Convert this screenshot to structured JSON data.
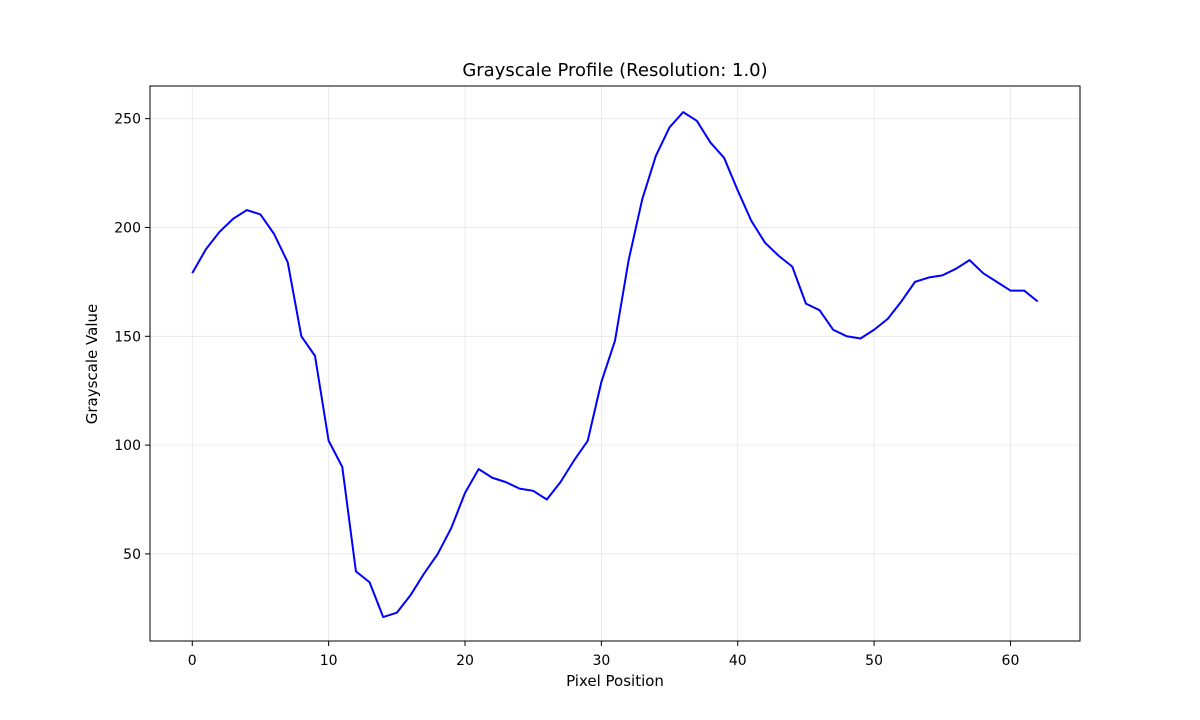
{
  "chart_data": {
    "type": "line",
    "title": "Grayscale Profile (Resolution: 1.0)",
    "xlabel": "Pixel Position",
    "ylabel": "Grayscale Value",
    "xlim": [
      -3.1,
      65.1
    ],
    "ylim": [
      10,
      265
    ],
    "xticks": [
      0,
      10,
      20,
      30,
      40,
      50,
      60
    ],
    "yticks": [
      50,
      100,
      150,
      200,
      250
    ],
    "grid": true,
    "legend": "none",
    "series": [
      {
        "color": "#0000ff",
        "x": [
          0,
          1,
          2,
          3,
          4,
          5,
          6,
          7,
          8,
          9,
          10,
          11,
          12,
          13,
          14,
          15,
          16,
          17,
          18,
          19,
          20,
          21,
          22,
          23,
          24,
          25,
          26,
          27,
          28,
          29,
          30,
          31,
          32,
          33,
          34,
          35,
          36,
          37,
          38,
          39,
          40,
          41,
          42,
          43,
          44,
          45,
          46,
          47,
          48,
          49,
          50,
          51,
          52,
          53,
          54,
          55,
          56,
          57,
          58,
          59,
          60,
          61,
          62
        ],
        "values": [
          179,
          190,
          198,
          204,
          208,
          206,
          197,
          184,
          150,
          141,
          102,
          90,
          42,
          37,
          21,
          23,
          31,
          41,
          50,
          62,
          78,
          89,
          85,
          83,
          80,
          79,
          75,
          83,
          93,
          102,
          129,
          148,
          185,
          213,
          233,
          246,
          253,
          249,
          239,
          232,
          217,
          203,
          193,
          187,
          182,
          165,
          162,
          153,
          150,
          149,
          153,
          158,
          166,
          175,
          177,
          178,
          181,
          185,
          179,
          175,
          171,
          171,
          166
        ]
      }
    ]
  }
}
